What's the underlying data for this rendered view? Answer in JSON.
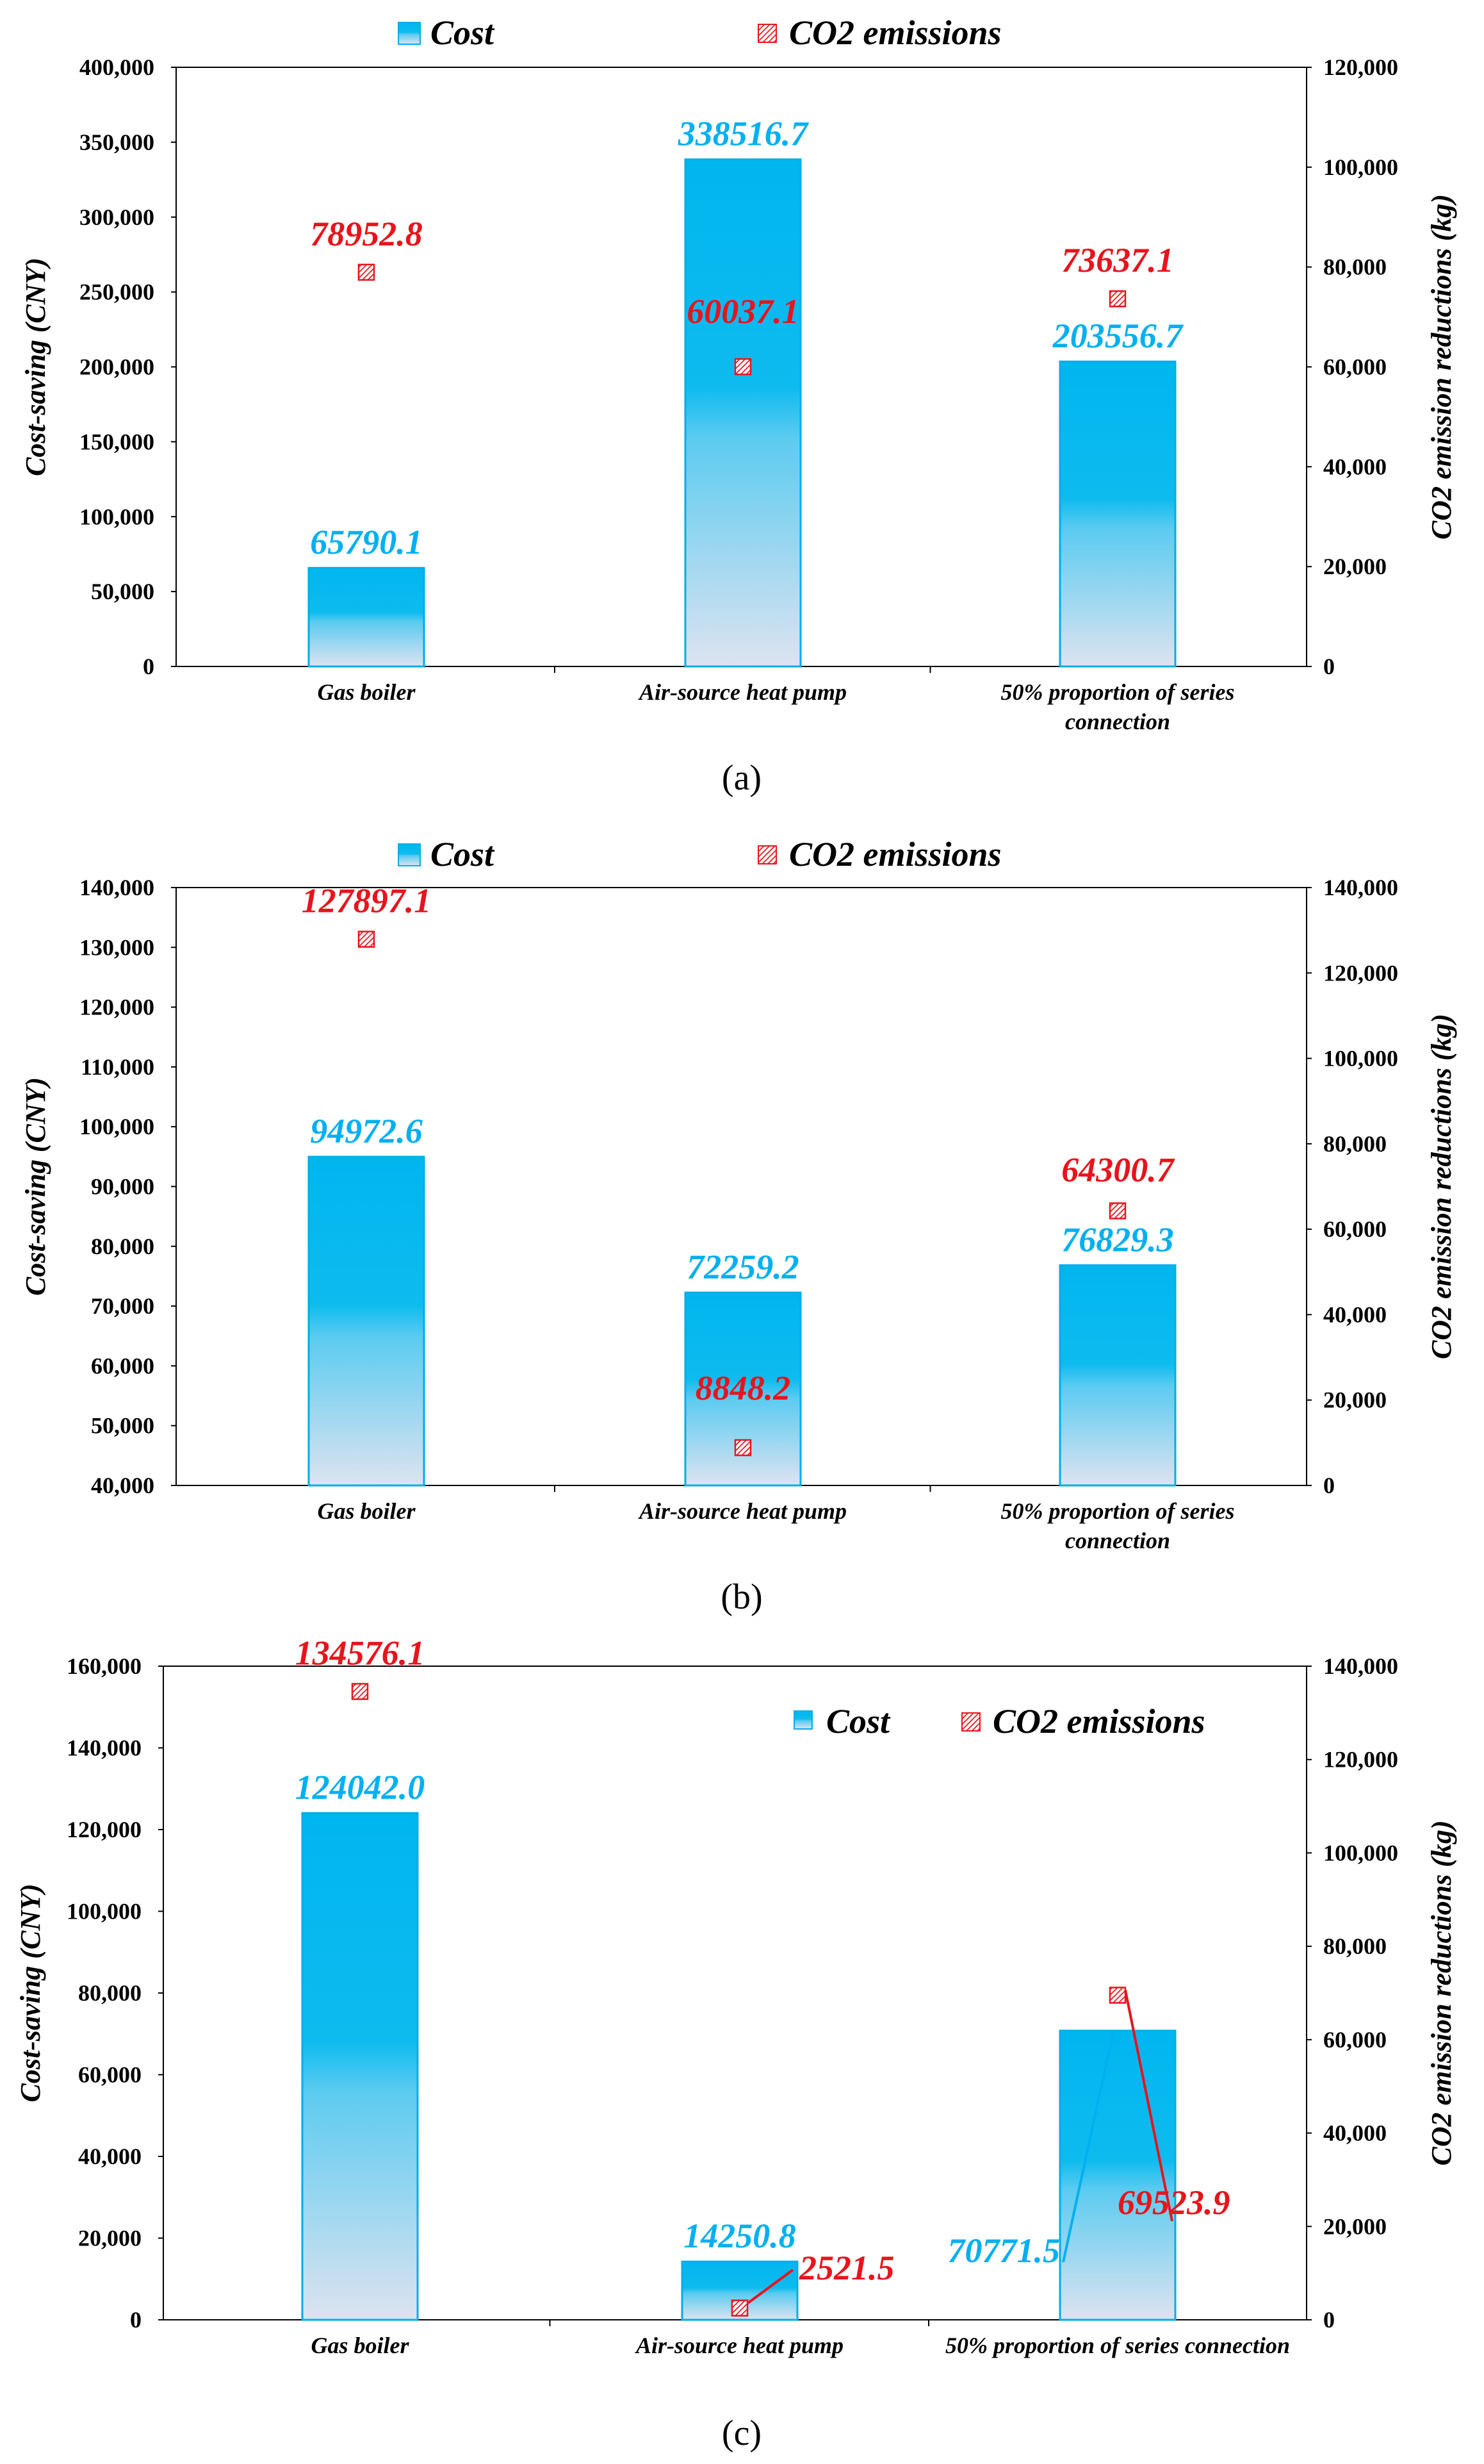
{
  "colors": {
    "cost_top": "#00b6ef",
    "cost_bottom": "#dde3f0",
    "cost_edge": "#00aee8",
    "cost_text": "#00b0f0",
    "co2_text": "#e8141c",
    "co2_marker": "#e8141c",
    "axis": "#000000"
  },
  "chart_data": [
    {
      "type": "bar",
      "caption": "(a)",
      "categories": [
        "Gas boiler",
        "Air-source heat pump",
        "50% proportion of series connection"
      ],
      "category_lines": [
        [
          "Gas boiler"
        ],
        [
          "Air-source heat pump"
        ],
        [
          "50% proportion of series",
          "connection"
        ]
      ],
      "series": [
        {
          "name": "Cost",
          "axis": "left",
          "values": [
            65790.1,
            338516.7,
            203556.7
          ],
          "labels": [
            "65790.1",
            "338516.7",
            "203556.7"
          ]
        },
        {
          "name": "CO2 emissions",
          "axis": "right",
          "values": [
            78952.8,
            60037.1,
            73637.1
          ],
          "labels": [
            "78952.8",
            "60037.1",
            "73637.1"
          ]
        }
      ],
      "ylabel_left": "Cost-saving (CNY)",
      "ylabel_right": "CO2 emission reductions (kg)",
      "ylim_left": [
        0,
        400000
      ],
      "ylim_right": [
        0,
        120000
      ],
      "yticks_left": [
        "0",
        "50,000",
        "100,000",
        "150,000",
        "200,000",
        "250,000",
        "300,000",
        "350,000",
        "400,000"
      ],
      "yticks_right": [
        "0",
        "20,000",
        "40,000",
        "60,000",
        "80,000",
        "100,000",
        "120,000"
      ],
      "legend": [
        "Cost",
        "CO2 emissions"
      ],
      "legend_position": "top"
    },
    {
      "type": "bar",
      "caption": "(b)",
      "categories": [
        "Gas boiler",
        "Air-source heat pump",
        "50% proportion of series connection"
      ],
      "category_lines": [
        [
          "Gas boiler"
        ],
        [
          "Air-source heat pump"
        ],
        [
          "50% proportion of series",
          "connection"
        ]
      ],
      "series": [
        {
          "name": "Cost",
          "axis": "left",
          "values": [
            94972.6,
            72259.2,
            76829.3
          ],
          "labels": [
            "94972.6",
            "72259.2",
            "76829.3"
          ]
        },
        {
          "name": "CO2 emissions",
          "axis": "right",
          "values": [
            127897.1,
            8848.2,
            64300.7
          ],
          "labels": [
            "127897.1",
            "8848.2",
            "64300.7"
          ]
        }
      ],
      "ylabel_left": "Cost-saving (CNY)",
      "ylabel_right": "CO2 emission reductions (kg)",
      "ylim_left": [
        40000,
        140000
      ],
      "ylim_right": [
        0,
        140000
      ],
      "yticks_left": [
        "40,000",
        "50,000",
        "60,000",
        "70,000",
        "80,000",
        "90,000",
        "100,000",
        "110,000",
        "120,000",
        "130,000",
        "140,000"
      ],
      "yticks_right": [
        "0",
        "20,000",
        "40,000",
        "60,000",
        "80,000",
        "100,000",
        "120,000",
        "140,000"
      ],
      "legend": [
        "Cost",
        "CO2 emissions"
      ],
      "legend_position": "top"
    },
    {
      "type": "bar",
      "caption": "(c)",
      "categories": [
        "Gas boiler",
        "Air-source heat pump",
        "50% proportion of series connection"
      ],
      "category_lines": [
        [
          "Gas boiler"
        ],
        [
          "Air-source heat pump"
        ],
        [
          "50% proportion of series connection"
        ]
      ],
      "series": [
        {
          "name": "Cost",
          "axis": "left",
          "values": [
            124042.0,
            14250.8,
            70771.5
          ],
          "labels": [
            "124042.0",
            "14250.8",
            "70771.5"
          ]
        },
        {
          "name": "CO2 emissions",
          "axis": "right",
          "values": [
            134576.1,
            2521.5,
            69523.9
          ],
          "labels": [
            "134576.1",
            "2521.5",
            "69523.9"
          ]
        }
      ],
      "ylabel_left": "Cost-saving (CNY)",
      "ylabel_right": "CO2 emission reductions (kg)",
      "ylim_left": [
        0,
        160000
      ],
      "ylim_right": [
        0,
        140000
      ],
      "yticks_left": [
        "0",
        "20,000",
        "40,000",
        "60,000",
        "80,000",
        "100,000",
        "120,000",
        "140,000",
        "160,000"
      ],
      "yticks_right": [
        "0",
        "20,000",
        "40,000",
        "60,000",
        "80,000",
        "100,000",
        "120,000",
        "140,000"
      ],
      "legend": [
        "Cost",
        "CO2 emissions"
      ],
      "legend_position": "top-right"
    }
  ]
}
